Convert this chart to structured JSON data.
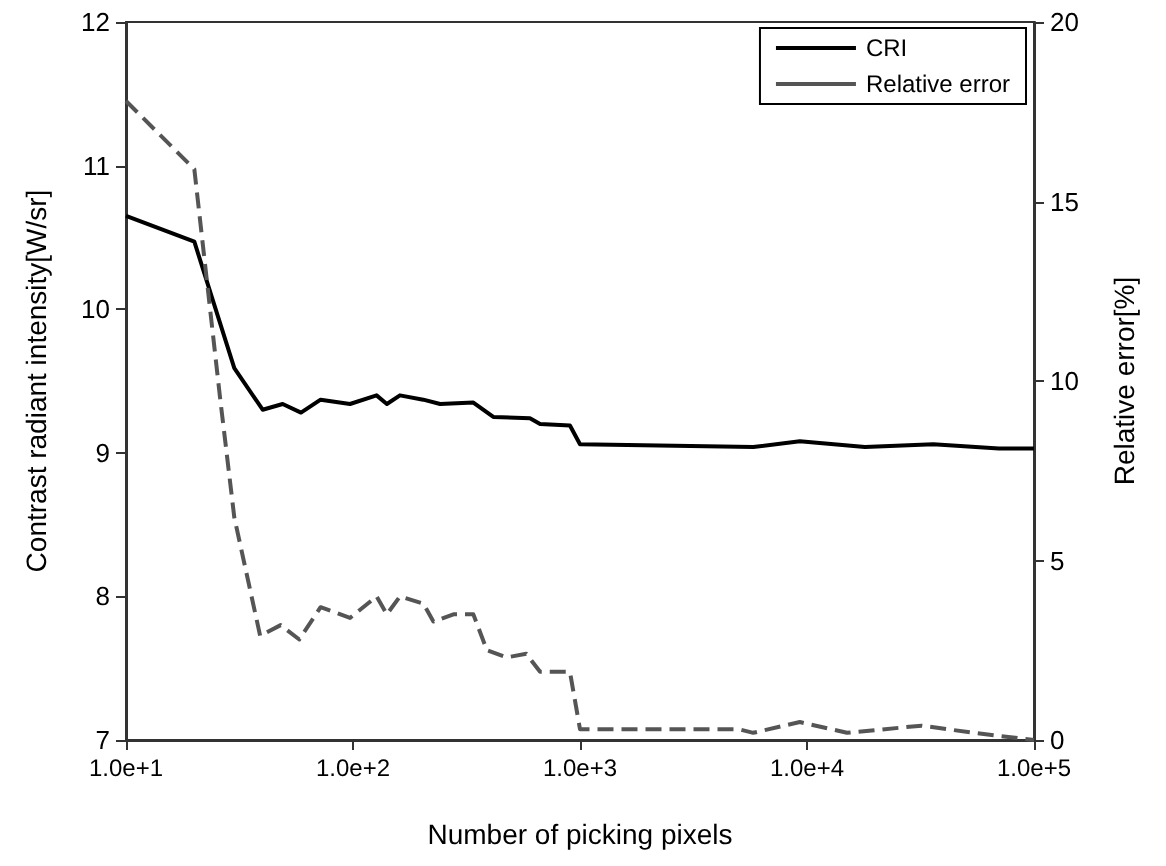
{
  "chart_data": {
    "type": "line",
    "xlabel": "Number of picking pixels",
    "ylabel": "Contrast radiant intensity[W/sr]",
    "y2label": "Relative error[%]",
    "log": "x",
    "xlim": [
      10,
      100000
    ],
    "xticks": [
      {
        "value": 10,
        "label": "1.0e+1"
      },
      {
        "value": 100,
        "label": "1.0e+2"
      },
      {
        "value": 1000,
        "label": "1.0e+3"
      },
      {
        "value": 10000,
        "label": "1.0e+4"
      },
      {
        "value": 100000,
        "label": "1.0e+5"
      }
    ],
    "ylim": [
      7,
      12
    ],
    "yticks": [
      7,
      8,
      9,
      10,
      11,
      12
    ],
    "y2lim": [
      0,
      20
    ],
    "y2ticks": [
      0,
      5,
      10,
      15,
      20
    ],
    "grid": false,
    "legend": "top right",
    "marker": "none",
    "series": [
      {
        "name": "CRI",
        "color": "#000000",
        "line_style": "solid",
        "x": [
          10,
          20,
          30,
          40,
          49,
          59,
          72,
          97,
          127,
          141,
          161,
          204,
          242,
          339,
          415,
          602,
          667,
          903,
          1000,
          5800,
          9300,
          18000,
          36000,
          70000,
          100000
        ],
        "values": [
          10.65,
          10.47,
          9.59,
          9.3,
          9.34,
          9.28,
          9.37,
          9.34,
          9.4,
          9.34,
          9.4,
          9.37,
          9.34,
          9.35,
          9.25,
          9.24,
          9.2,
          9.19,
          9.06,
          9.04,
          9.08,
          9.04,
          9.06,
          9.03,
          9.03
        ]
      },
      {
        "name": "Relative error",
        "color": "#555555",
        "line_style": "dashed",
        "axis": "y2",
        "x": [
          10,
          20,
          26,
          30,
          39,
          48,
          58,
          72,
          97,
          127,
          141,
          161,
          204,
          226,
          277,
          339,
          389,
          475,
          580,
          667,
          903,
          1000,
          5000,
          5800,
          9300,
          15000,
          32000,
          54000,
          100000
        ],
        "values": [
          17.8,
          15.9,
          9.5,
          6.2,
          2.9,
          3.2,
          2.8,
          3.7,
          3.4,
          4.0,
          3.5,
          4.0,
          3.8,
          3.3,
          3.5,
          3.5,
          2.5,
          2.3,
          2.4,
          1.9,
          1.9,
          0.3,
          0.3,
          0.2,
          0.5,
          0.2,
          0.4,
          0.2,
          0
        ]
      }
    ]
  }
}
